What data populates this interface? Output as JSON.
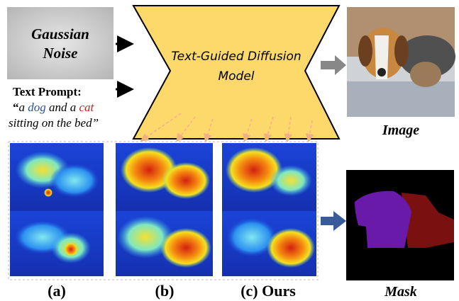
{
  "noise": {
    "lines": [
      "Gaussian",
      "Noise"
    ]
  },
  "prompt": {
    "label": "Text Prompt:",
    "line1": [
      "“",
      "a ",
      "dog",
      " and a ",
      "cat"
    ],
    "line2": "sitting on the bed”"
  },
  "model": {
    "lines": [
      "Text-Guided Diffusion",
      "Model"
    ]
  },
  "outputs": {
    "image": "Image",
    "mask": "Mask"
  },
  "panels": [
    "(a)",
    "(b)",
    "(c) Ours"
  ]
}
